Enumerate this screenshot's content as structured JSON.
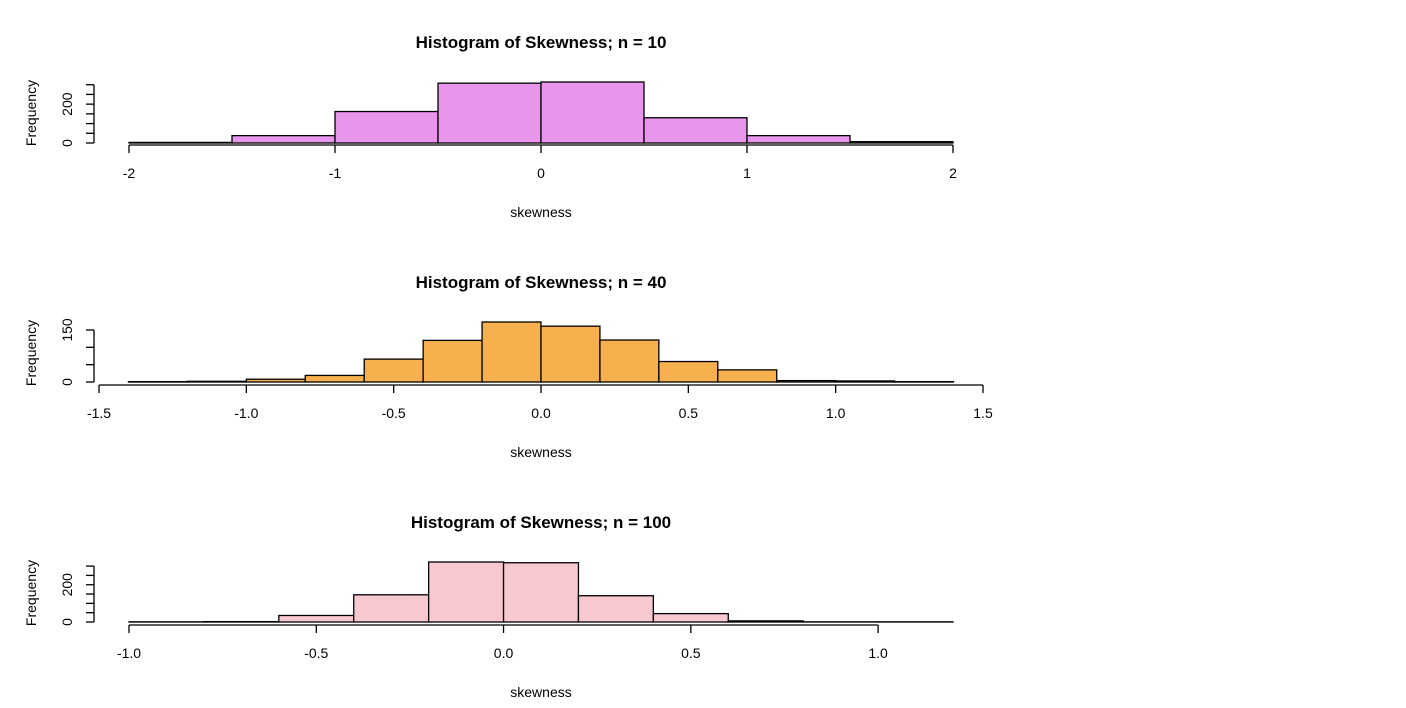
{
  "chart_data": [
    {
      "type": "histogram",
      "title": "Histogram of Skewness; n = 10",
      "xlabel": "skewness",
      "ylabel": "Frequency",
      "fill_color": "#e796eb",
      "bin_edges": [
        -2,
        -1.5,
        -1,
        -0.5,
        0,
        0.5,
        1,
        1.5,
        2
      ],
      "counts": [
        3,
        38,
        162,
        308,
        314,
        130,
        38,
        7
      ],
      "xticks": [
        -2,
        -1,
        0,
        1,
        2
      ],
      "xtick_labels": [
        "-2",
        "-1",
        "0",
        "1",
        "2"
      ],
      "xlim": [
        -2,
        2
      ],
      "yticks": [
        0,
        50,
        100,
        150,
        200,
        250,
        300
      ],
      "ytick_labels": [
        "0",
        "",
        "",
        "",
        "200",
        "",
        ""
      ],
      "ylim": [
        0,
        314
      ]
    },
    {
      "type": "histogram",
      "title": "Histogram of Skewness; n = 40",
      "xlabel": "skewness",
      "ylabel": "Frequency",
      "fill_color": "#f6b04d",
      "bin_edges": [
        -1.4,
        -1.2,
        -1.0,
        -0.8,
        -0.6,
        -0.4,
        -0.2,
        0.0,
        0.2,
        0.4,
        0.6,
        0.8,
        1.0,
        1.2,
        1.4
      ],
      "counts": [
        1,
        2,
        8,
        19,
        66,
        120,
        173,
        161,
        121,
        59,
        35,
        4,
        3,
        1
      ],
      "xticks": [
        -1.5,
        -1.0,
        -0.5,
        0.0,
        0.5,
        1.0,
        1.5
      ],
      "xtick_labels": [
        "-1.5",
        "-1.0",
        "-0.5",
        "0.0",
        "0.5",
        "1.0",
        "1.5"
      ],
      "xlim": [
        -1.5,
        1.5
      ],
      "yticks": [
        0,
        50,
        100,
        150
      ],
      "ytick_labels": [
        "0",
        "",
        "",
        "150"
      ],
      "ylim": [
        0,
        173
      ]
    },
    {
      "type": "histogram",
      "title": "Histogram of Skewness; n = 100",
      "xlabel": "skewness",
      "ylabel": "Frequency",
      "fill_color": "#f8c8d1",
      "bin_edges": [
        -1.0,
        -0.8,
        -0.6,
        -0.4,
        -0.2,
        0.0,
        0.2,
        0.4,
        0.6,
        0.8,
        1.0,
        1.2
      ],
      "counts": [
        1,
        2,
        35,
        146,
        322,
        318,
        141,
        45,
        6,
        1,
        1
      ],
      "xticks": [
        -1.0,
        -0.5,
        0.0,
        0.5,
        1.0
      ],
      "xtick_labels": [
        "-1.0",
        "-0.5",
        "0.0",
        "0.5",
        "1.0"
      ],
      "xlim": [
        -1.0,
        1.2
      ],
      "yticks": [
        0,
        50,
        100,
        150,
        200,
        250,
        300
      ],
      "ytick_labels": [
        "0",
        "",
        "",
        "",
        "200",
        "",
        ""
      ],
      "ylim": [
        0,
        322
      ]
    }
  ]
}
